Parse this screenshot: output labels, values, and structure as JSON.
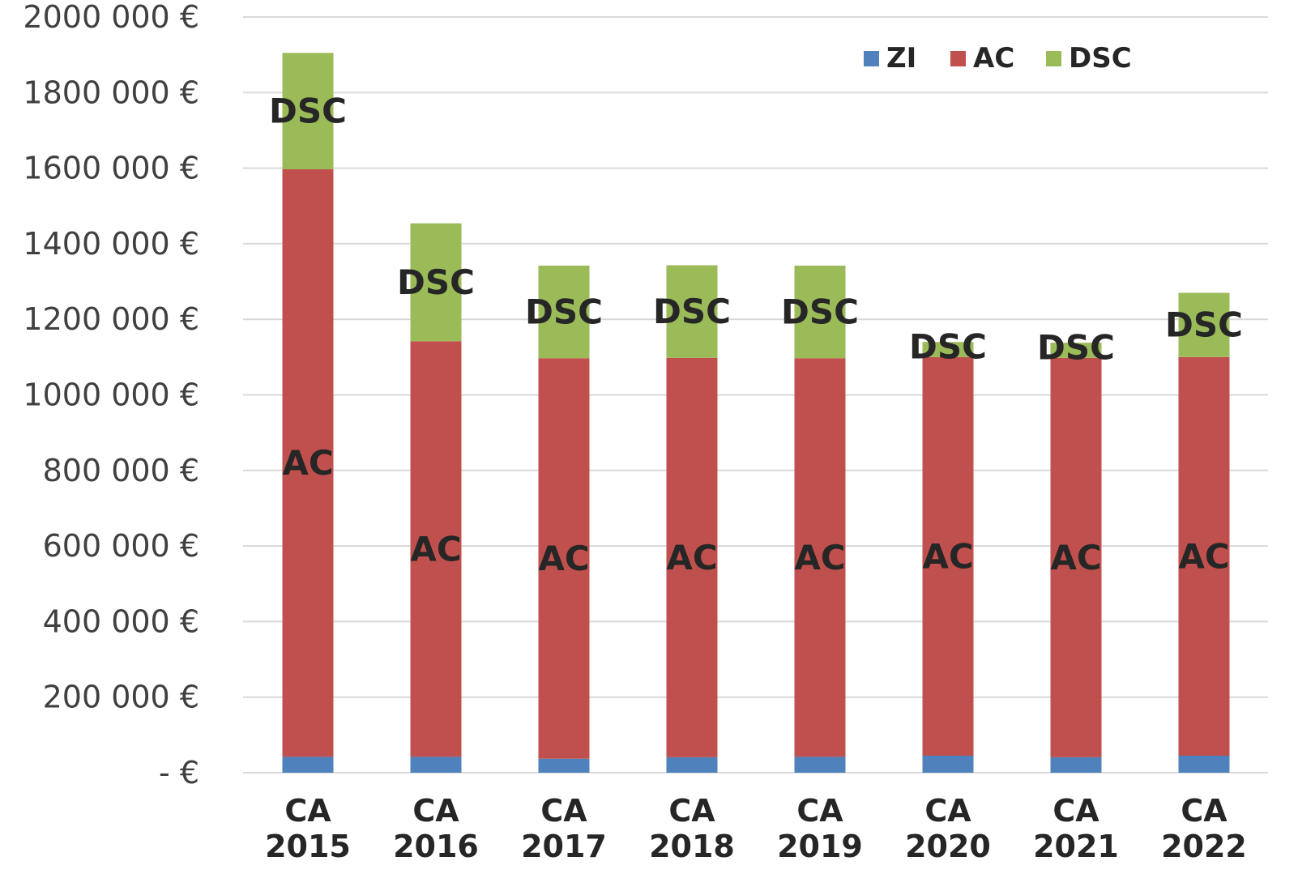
{
  "chart_data": {
    "type": "bar",
    "stacked": true,
    "title": "",
    "xlabel": "",
    "ylabel": "",
    "categories": [
      [
        "CA",
        "2015"
      ],
      [
        "CA",
        "2016"
      ],
      [
        "CA",
        "2017"
      ],
      [
        "CA",
        "2018"
      ],
      [
        "CA",
        "2019"
      ],
      [
        "CA",
        "2020"
      ],
      [
        "CA",
        "2021"
      ],
      [
        "CA",
        "2022"
      ]
    ],
    "series": [
      {
        "name": "ZI",
        "color": "#4f81bd",
        "values": [
          42000,
          42000,
          37000,
          41000,
          42000,
          45000,
          41000,
          45000
        ]
      },
      {
        "name": "AC",
        "color": "#c0504d",
        "values": [
          1555000,
          1100000,
          1060000,
          1057000,
          1055000,
          1055000,
          1057000,
          1055000
        ]
      },
      {
        "name": "DSC",
        "color": "#9bbb59",
        "values": [
          308000,
          312000,
          245000,
          245000,
          245000,
          40000,
          40000,
          170000
        ]
      }
    ],
    "segment_labels": {
      "ZI": "",
      "AC": "AC",
      "DSC": "DSC"
    },
    "ylim": [
      0,
      2000000
    ],
    "yticks": [
      0,
      200000,
      400000,
      600000,
      800000,
      1000000,
      1200000,
      1400000,
      1600000,
      1800000,
      2000000
    ],
    "ytick_labels": [
      "- €",
      "200 000 €",
      "400 000 €",
      "600 000 €",
      "800 000 €",
      "1000 000 €",
      "1200 000 €",
      "1400 000 €",
      "1600 000 €",
      "1800 000 €",
      "2000 000 €"
    ],
    "grid": true,
    "legend_position": "top-right"
  }
}
